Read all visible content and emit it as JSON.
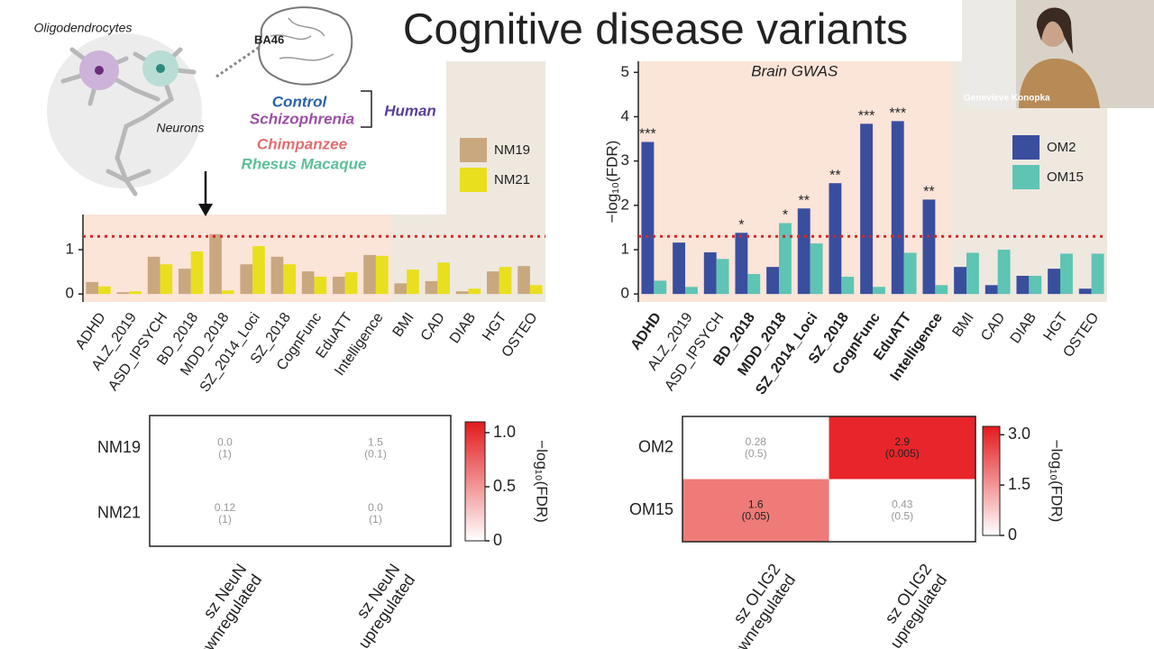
{
  "title": "Cognitive disease variants",
  "video": {
    "name": "Genevieve Konopka"
  },
  "inset": {
    "cells": [
      "Oligodendrocytes",
      "Neurons"
    ],
    "region": "BA46",
    "groups": [
      "Control",
      "Schizophrenia",
      "Chimpanzee",
      "Rhesus Macaque"
    ],
    "species": "Human"
  },
  "chart_data": [
    {
      "type": "bar",
      "categories": [
        "ADHD",
        "ALZ_2019",
        "ASD_IPSYCH",
        "BD_2018",
        "MDD_2018",
        "SZ_2014_Loci",
        "SZ_2018",
        "CognFunc",
        "EduATT",
        "Intelligence",
        "BMI",
        "CAD",
        "DIAB",
        "HGT",
        "OSTEO"
      ],
      "series": [
        {
          "name": "NM19",
          "color": "#c9a880",
          "values": [
            0.27,
            0.04,
            0.84,
            0.57,
            1.35,
            0.67,
            0.84,
            0.51,
            0.39,
            0.88,
            0.24,
            0.29,
            0.06,
            0.51,
            0.63
          ]
        },
        {
          "name": "NM21",
          "color": "#e9df1e",
          "values": [
            0.17,
            0.06,
            0.67,
            0.96,
            0.08,
            1.08,
            0.67,
            0.39,
            0.49,
            0.86,
            0.55,
            0.71,
            0.12,
            0.61,
            0.2
          ]
        }
      ],
      "ylim": [
        -0.18,
        5.25
      ],
      "yticks": [
        0,
        1
      ],
      "threshold": 1.3,
      "threshold_color": "#d62728",
      "regions": [
        {
          "span": 10,
          "color": "#fbe4d8"
        },
        {
          "span": 5,
          "color": "#eee8df"
        }
      ],
      "legend": "upper right"
    },
    {
      "type": "bar",
      "categories": [
        "ADHD",
        "ALZ_2019",
        "ASD_IPSYCH",
        "BD_2018",
        "MDD_2018",
        "SZ_2014_Loci",
        "SZ_2018",
        "CognFunc",
        "EduATT",
        "Intelligence",
        "BMI",
        "CAD",
        "DIAB",
        "HGT",
        "OSTEO"
      ],
      "bold": [
        true,
        false,
        false,
        true,
        true,
        true,
        true,
        true,
        true,
        true,
        false,
        false,
        false,
        false,
        false
      ],
      "series": [
        {
          "name": "OM2",
          "color": "#3a4e9e",
          "values": [
            3.43,
            1.16,
            0.94,
            1.38,
            0.61,
            1.93,
            2.5,
            3.84,
            3.9,
            2.13,
            0.61,
            0.2,
            0.41,
            0.57,
            0.12
          ],
          "significance": [
            "***",
            null,
            null,
            "*",
            null,
            "**",
            "**",
            "***",
            "***",
            "**",
            null,
            null,
            null,
            null,
            null
          ]
        },
        {
          "name": "OM15",
          "color": "#5ec4b4",
          "values": [
            0.3,
            0.16,
            0.79,
            0.45,
            1.6,
            1.14,
            0.39,
            0.16,
            0.93,
            0.2,
            0.93,
            1.0,
            0.41,
            0.91,
            0.91
          ],
          "significance": [
            null,
            null,
            null,
            null,
            "*",
            null,
            null,
            null,
            null,
            null,
            null,
            null,
            null,
            null,
            null
          ]
        }
      ],
      "ylabel": "−log₁₀(FDR)",
      "ylim": [
        -0.18,
        5.25
      ],
      "yticks": [
        0,
        1,
        2,
        3,
        4,
        5
      ],
      "threshold": 1.3,
      "threshold_color": "#d62728",
      "regions": [
        {
          "span": 10,
          "color": "#fbe4d8",
          "label": "Brain GWAS"
        },
        {
          "span": 5,
          "color": "#eee8df"
        }
      ],
      "legend": "upper right"
    },
    {
      "type": "heatmap",
      "rows": [
        "NM19",
        "NM21"
      ],
      "columns": [
        [
          "sz NeuN",
          "downregulated"
        ],
        [
          "sz NeuN",
          "upregulated"
        ]
      ],
      "values": [
        [
          0,
          1.5
        ],
        [
          0.12,
          0
        ]
      ],
      "value_labels": [
        [
          "0.0",
          "1.5"
        ],
        [
          "0.12",
          "0.0"
        ]
      ],
      "fdr": [
        [
          1,
          0.1
        ],
        [
          1,
          1
        ]
      ],
      "fdr_labels": [
        [
          "(1)",
          "(0.1)"
        ],
        [
          "(1)",
          "(1)"
        ]
      ],
      "cell_colors": [
        [
          "#ffffff",
          "#ffffff"
        ],
        [
          "#ffffff",
          "#ffffff"
        ]
      ],
      "colorbar": {
        "lim": [
          0,
          1.1
        ],
        "ticks": [
          0,
          0.5,
          {
            "value": 1,
            "label": "1.0"
          }
        ],
        "label": "−log₁₀(FDR)",
        "colors": [
          "#ffffff",
          "#e31a1c"
        ]
      }
    },
    {
      "type": "heatmap",
      "rows": [
        "OM2",
        "OM15"
      ],
      "columns": [
        [
          "sz OLIG2",
          "downregulated"
        ],
        [
          "sz OLIG2",
          "upregulated"
        ]
      ],
      "values": [
        [
          0.28,
          2.9
        ],
        [
          1.6,
          0.43
        ]
      ],
      "fdr": [
        [
          0.5,
          0.005
        ],
        [
          0.05,
          0.5
        ]
      ],
      "fdr_labels": [
        [
          "(0.5)",
          "(0.005)"
        ],
        [
          "(0.05)",
          "(0.5)"
        ]
      ],
      "cell_colors": [
        [
          "#ffffff",
          "#e8252a"
        ],
        [
          "#ee7b78",
          "#ffffff"
        ]
      ],
      "colorbar": {
        "lim": [
          0,
          3.25
        ],
        "ticks": [
          0,
          1.5,
          {
            "value": 3,
            "label": "3.0"
          }
        ],
        "label": "−log₁₀(FDR)",
        "colors": [
          "#ffffff",
          "#e31a1c"
        ]
      }
    }
  ]
}
